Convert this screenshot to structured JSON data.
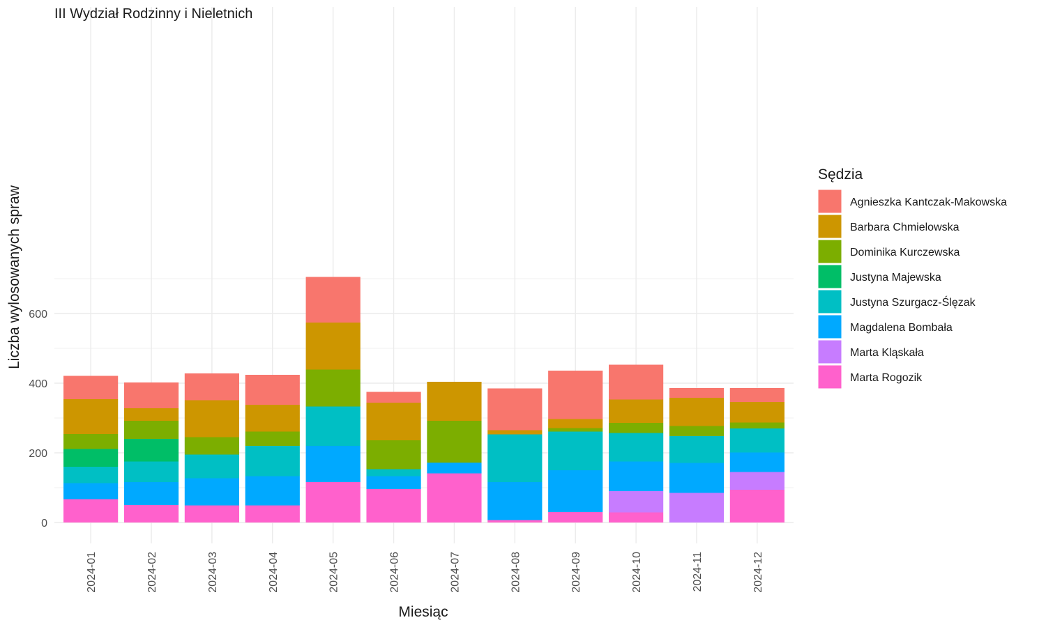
{
  "chart_data": {
    "type": "bar",
    "stacked": true,
    "title": "III Wydział Rodzinny i Nieletnich",
    "xlabel": "Miesiąc",
    "ylabel": "Liczba wylosowanych spraw",
    "ylim": [
      0,
      700
    ],
    "yticks": [
      0,
      200,
      400,
      600
    ],
    "grid": true,
    "legend_title": "Sędzia",
    "legend_position": "right",
    "categories": [
      "2024-01",
      "2024-02",
      "2024-03",
      "2024-04",
      "2024-05",
      "2024-06",
      "2024-07",
      "2024-08",
      "2024-09",
      "2024-10",
      "2024-11",
      "2024-12"
    ],
    "series": [
      {
        "name": "Marta Rogozik",
        "color": "#FF61CC",
        "values": [
          67,
          50,
          49,
          49,
          116,
          96,
          141,
          7,
          30,
          29,
          0,
          94
        ]
      },
      {
        "name": "Marta Kląskała",
        "color": "#C77CFF",
        "values": [
          0,
          0,
          0,
          0,
          0,
          0,
          0,
          0,
          0,
          61,
          85,
          51
        ]
      },
      {
        "name": "Magdalena Bombała",
        "color": "#00A9FF",
        "values": [
          46,
          66,
          78,
          84,
          104,
          37,
          31,
          109,
          120,
          85,
          86,
          56
        ]
      },
      {
        "name": "Justyna Szurgacz-Ślęzak",
        "color": "#00BFC4",
        "values": [
          47,
          59,
          68,
          87,
          113,
          20,
          0,
          137,
          111,
          82,
          77,
          69
        ]
      },
      {
        "name": "Justyna Majewska",
        "color": "#00BE67",
        "values": [
          51,
          65,
          0,
          0,
          0,
          0,
          0,
          0,
          0,
          0,
          0,
          0
        ]
      },
      {
        "name": "Dominika Kurczewska",
        "color": "#7CAE00",
        "values": [
          43,
          52,
          50,
          41,
          106,
          83,
          120,
          0,
          10,
          29,
          29,
          17
        ]
      },
      {
        "name": "Barbara Chmielowska",
        "color": "#CD9600",
        "values": [
          100,
          36,
          106,
          77,
          135,
          108,
          112,
          12,
          26,
          67,
          81,
          59
        ]
      },
      {
        "name": "Agnieszka Kantczak-Makowska",
        "color": "#F8766D",
        "values": [
          67,
          74,
          77,
          86,
          131,
          31,
          0,
          120,
          139,
          100,
          28,
          40
        ]
      }
    ]
  }
}
